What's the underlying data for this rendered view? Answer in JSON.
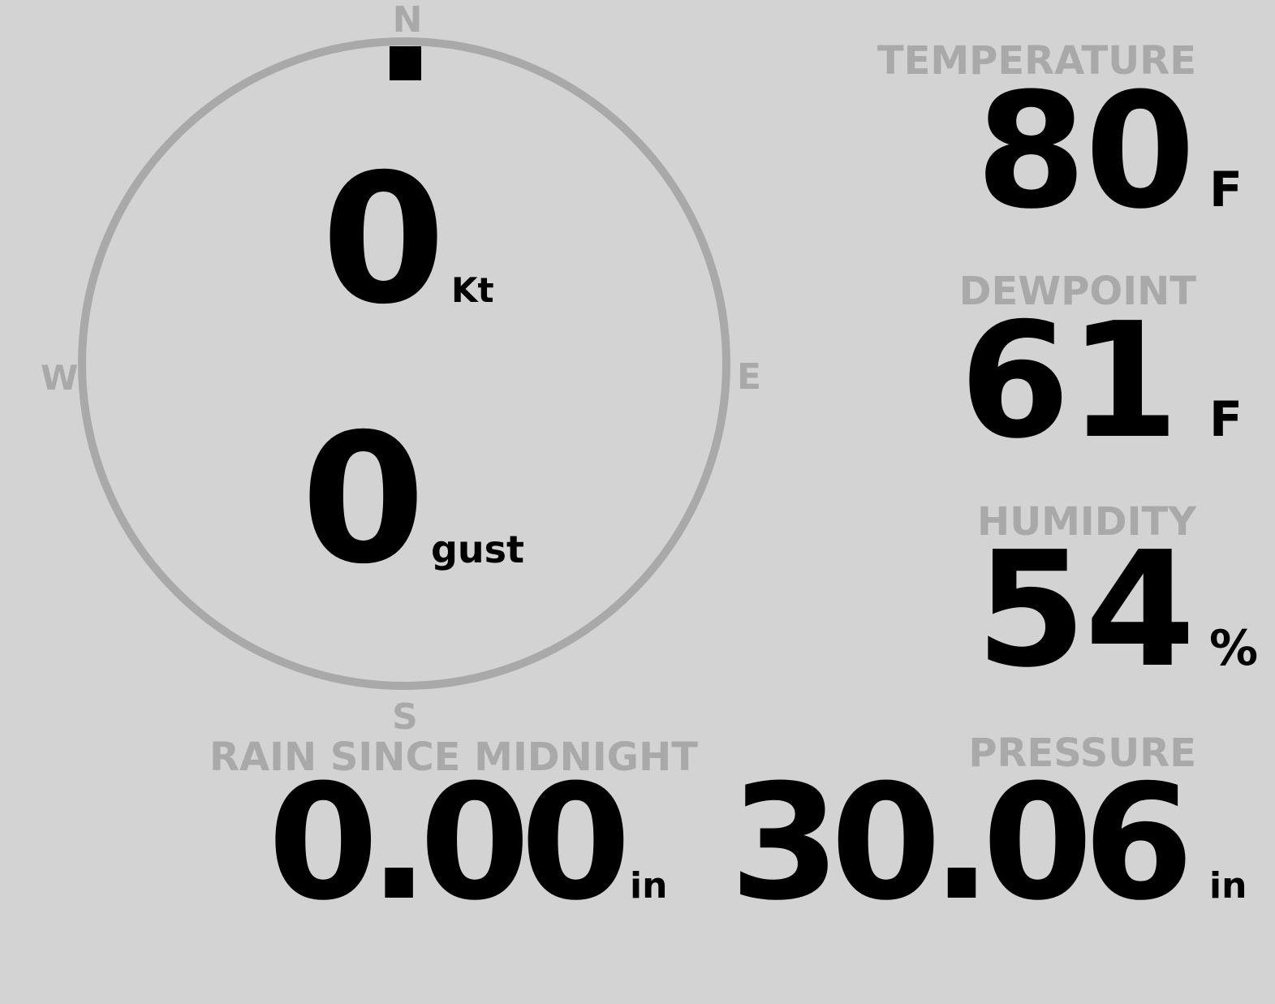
{
  "colors": {
    "background": "#d3d3d3",
    "label": "#a9a9a9",
    "value": "#000000"
  },
  "compass": {
    "north": "N",
    "east": "E",
    "south": "S",
    "west": "W",
    "direction_deg": 0
  },
  "wind": {
    "speed": "0",
    "speed_unit": "Kt",
    "gust": "0",
    "gust_unit": "gust"
  },
  "temperature": {
    "label": "TEMPERATURE",
    "value": "80",
    "unit": "F"
  },
  "dewpoint": {
    "label": "DEWPOINT",
    "value": "61",
    "unit": "F"
  },
  "humidity": {
    "label": "HUMIDITY",
    "value": "54",
    "unit": "%"
  },
  "pressure": {
    "label": "PRESSURE",
    "value": "30.06",
    "unit": "in"
  },
  "rain": {
    "label": "RAIN SINCE MIDNIGHT",
    "value": "0.00",
    "unit": "in"
  }
}
